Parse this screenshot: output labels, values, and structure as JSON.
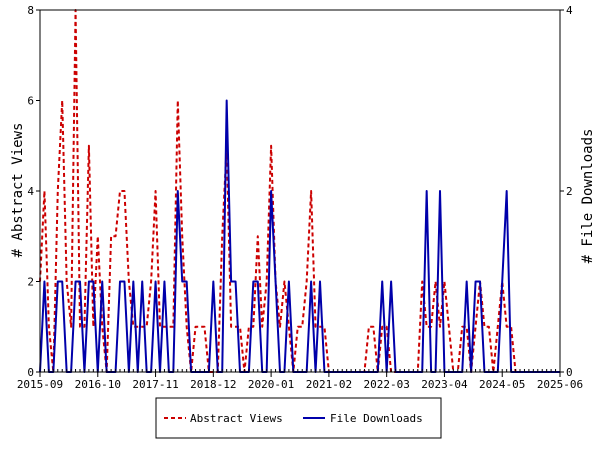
{
  "chart_data": {
    "type": "line",
    "title": "",
    "ylabel_left": "# Abstract Views",
    "ylabel_right": "# File Downloads",
    "x_tick_labels": [
      "2015-09",
      "2016-10",
      "2017-11",
      "2018-12",
      "2020-01",
      "2021-02",
      "2022-03",
      "2023-04",
      "2024-05",
      "2025-06"
    ],
    "ylim_left": [
      0,
      8
    ],
    "ylim_right": [
      0,
      4
    ],
    "y_ticks_left": [
      0,
      2,
      4,
      6,
      8
    ],
    "y_ticks_right": [
      0,
      2,
      4
    ],
    "y_tick_labels_left": [
      "0",
      "2",
      "4",
      "6",
      "8"
    ],
    "y_tick_labels_right": [
      "0",
      "2",
      "4"
    ],
    "grid": false,
    "legend_position": "bottom",
    "x_period": "monthly, 2015-09 to 2025-06",
    "series": [
      {
        "name": "Abstract Views",
        "color": "#cc0000",
        "style": "dashed",
        "axis": "left",
        "values": [
          2,
          4,
          1,
          0,
          4,
          6,
          2,
          1,
          8,
          1,
          1,
          5,
          1,
          3,
          1,
          0,
          3,
          3,
          4,
          4,
          2,
          1,
          1,
          1,
          1,
          2,
          4,
          1,
          1,
          1,
          1,
          6,
          3,
          1,
          0,
          1,
          1,
          1,
          0,
          0,
          0,
          3,
          5,
          1,
          1,
          1,
          0,
          1,
          1,
          3,
          1,
          2,
          5,
          2,
          1,
          2,
          1,
          0,
          1,
          1,
          2,
          4,
          1,
          1,
          1,
          0,
          0,
          0,
          0,
          0,
          0,
          0,
          0,
          0,
          1,
          1,
          0,
          1,
          1,
          0,
          0,
          0,
          0,
          0,
          0,
          0,
          2,
          1,
          1,
          2,
          1,
          2,
          1,
          0,
          0,
          1,
          1,
          0,
          1,
          2,
          1,
          1,
          0,
          1,
          2,
          1,
          1,
          0,
          0,
          0,
          0,
          0,
          0,
          0,
          0,
          0,
          0,
          0
        ]
      },
      {
        "name": "File Downloads",
        "color": "#0000aa",
        "style": "solid",
        "axis": "right",
        "values": [
          0,
          1,
          0,
          0,
          1,
          1,
          0,
          0,
          1,
          1,
          0,
          1,
          1,
          0,
          1,
          0,
          0,
          0,
          1,
          1,
          0,
          1,
          0,
          1,
          0,
          0,
          1,
          0,
          1,
          0,
          0,
          2,
          1,
          1,
          0,
          0,
          0,
          0,
          0,
          1,
          0,
          0,
          3,
          1,
          1,
          0,
          0,
          0,
          1,
          1,
          0,
          0,
          2,
          1,
          0,
          0,
          1,
          0,
          0,
          0,
          0,
          1,
          0,
          1,
          0,
          0,
          0,
          0,
          0,
          0,
          0,
          0,
          0,
          0,
          0,
          0,
          0,
          1,
          0,
          1,
          0,
          0,
          0,
          0,
          0,
          0,
          0,
          2,
          0,
          0,
          2,
          0,
          0,
          0,
          0,
          0,
          1,
          0,
          1,
          1,
          0,
          0,
          0,
          0,
          1,
          2,
          0,
          0,
          0,
          0,
          0,
          0,
          0,
          0,
          0,
          0,
          0,
          0
        ]
      }
    ]
  }
}
